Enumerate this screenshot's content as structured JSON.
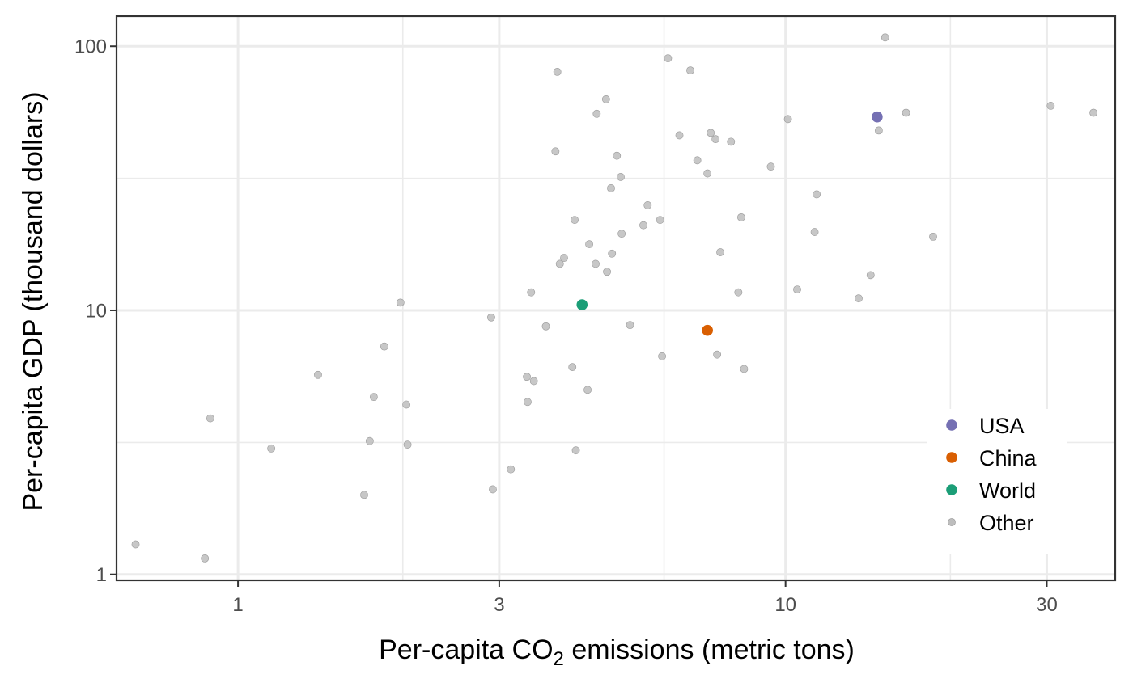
{
  "chart_data": {
    "type": "scatter",
    "title": "",
    "xlabel": {
      "prefix": "Per-capita CO",
      "subscript": "2",
      "suffix": " emissions (metric tons)"
    },
    "ylabel": "Per-capita GDP (thousand dollars)",
    "x_scale": "log10",
    "y_scale": "log10",
    "xlim": [
      0.6,
      40
    ],
    "ylim": [
      0.95,
      130
    ],
    "x_ticks": [
      {
        "value": 1,
        "label": "1"
      },
      {
        "value": 3,
        "label": "3"
      },
      {
        "value": 10,
        "label": "10"
      },
      {
        "value": 30,
        "label": "30"
      }
    ],
    "y_ticks": [
      {
        "value": 1,
        "label": "1"
      },
      {
        "value": 10,
        "label": "10"
      },
      {
        "value": 100,
        "label": "100"
      }
    ],
    "x_minor_gridlines": [
      0.6,
      2,
      6,
      20
    ],
    "y_minor_gridlines": [
      3.16,
      31.6
    ],
    "grid": true,
    "legend_position": "bottom-right inside",
    "series": [
      {
        "name": "USA",
        "color": "#7570b3",
        "points": [
          {
            "x": 14.7,
            "y": 54
          }
        ]
      },
      {
        "name": "China",
        "color": "#d95f02",
        "points": [
          {
            "x": 7.2,
            "y": 8.4
          }
        ]
      },
      {
        "name": "World",
        "color": "#1b9e77",
        "points": [
          {
            "x": 4.25,
            "y": 10.5
          }
        ]
      },
      {
        "name": "Other",
        "color": "#bdbdbd",
        "points": [
          {
            "x": 0.65,
            "y": 1.3
          },
          {
            "x": 0.87,
            "y": 1.15
          },
          {
            "x": 0.89,
            "y": 3.9
          },
          {
            "x": 1.15,
            "y": 3.0
          },
          {
            "x": 1.4,
            "y": 5.7
          },
          {
            "x": 1.7,
            "y": 2.0
          },
          {
            "x": 1.74,
            "y": 3.2
          },
          {
            "x": 1.77,
            "y": 4.7
          },
          {
            "x": 1.85,
            "y": 7.3
          },
          {
            "x": 1.98,
            "y": 10.7
          },
          {
            "x": 2.03,
            "y": 4.4
          },
          {
            "x": 2.04,
            "y": 3.1
          },
          {
            "x": 2.9,
            "y": 9.4
          },
          {
            "x": 2.92,
            "y": 2.1
          },
          {
            "x": 3.15,
            "y": 2.5
          },
          {
            "x": 3.37,
            "y": 5.6
          },
          {
            "x": 3.38,
            "y": 4.5
          },
          {
            "x": 3.43,
            "y": 11.7
          },
          {
            "x": 3.47,
            "y": 5.4
          },
          {
            "x": 3.65,
            "y": 8.7
          },
          {
            "x": 3.8,
            "y": 40
          },
          {
            "x": 3.83,
            "y": 80
          },
          {
            "x": 3.87,
            "y": 15
          },
          {
            "x": 3.94,
            "y": 15.8
          },
          {
            "x": 4.08,
            "y": 6.1
          },
          {
            "x": 4.12,
            "y": 22
          },
          {
            "x": 4.14,
            "y": 2.95
          },
          {
            "x": 4.35,
            "y": 5.0
          },
          {
            "x": 4.38,
            "y": 17.8
          },
          {
            "x": 4.5,
            "y": 15
          },
          {
            "x": 4.52,
            "y": 55.5
          },
          {
            "x": 4.7,
            "y": 63
          },
          {
            "x": 4.72,
            "y": 14
          },
          {
            "x": 4.8,
            "y": 29
          },
          {
            "x": 4.82,
            "y": 16.4
          },
          {
            "x": 4.92,
            "y": 38.5
          },
          {
            "x": 5.0,
            "y": 32
          },
          {
            "x": 5.02,
            "y": 19.5
          },
          {
            "x": 5.2,
            "y": 8.8
          },
          {
            "x": 5.5,
            "y": 21
          },
          {
            "x": 5.6,
            "y": 25
          },
          {
            "x": 5.9,
            "y": 22
          },
          {
            "x": 5.95,
            "y": 6.7
          },
          {
            "x": 6.1,
            "y": 90
          },
          {
            "x": 6.4,
            "y": 46
          },
          {
            "x": 6.7,
            "y": 81
          },
          {
            "x": 6.9,
            "y": 37
          },
          {
            "x": 7.2,
            "y": 33
          },
          {
            "x": 7.3,
            "y": 47
          },
          {
            "x": 7.45,
            "y": 44.5
          },
          {
            "x": 7.5,
            "y": 6.8
          },
          {
            "x": 7.6,
            "y": 16.6
          },
          {
            "x": 7.95,
            "y": 43.5
          },
          {
            "x": 8.2,
            "y": 11.7
          },
          {
            "x": 8.3,
            "y": 22.5
          },
          {
            "x": 8.4,
            "y": 6.0
          },
          {
            "x": 9.4,
            "y": 35
          },
          {
            "x": 10.1,
            "y": 53
          },
          {
            "x": 10.5,
            "y": 12
          },
          {
            "x": 11.3,
            "y": 19.8
          },
          {
            "x": 11.4,
            "y": 27.5
          },
          {
            "x": 13.6,
            "y": 11.1
          },
          {
            "x": 14.3,
            "y": 13.6
          },
          {
            "x": 14.8,
            "y": 48
          },
          {
            "x": 15.2,
            "y": 108
          },
          {
            "x": 16.6,
            "y": 56
          },
          {
            "x": 18.6,
            "y": 19
          },
          {
            "x": 30.5,
            "y": 59.5
          },
          {
            "x": 36.5,
            "y": 56
          }
        ]
      }
    ],
    "legend": [
      {
        "label": "USA",
        "color": "#7570b3"
      },
      {
        "label": "China",
        "color": "#d95f02"
      },
      {
        "label": "World",
        "color": "#1b9e77"
      },
      {
        "label": "Other",
        "color": "#bdbdbd"
      }
    ]
  }
}
